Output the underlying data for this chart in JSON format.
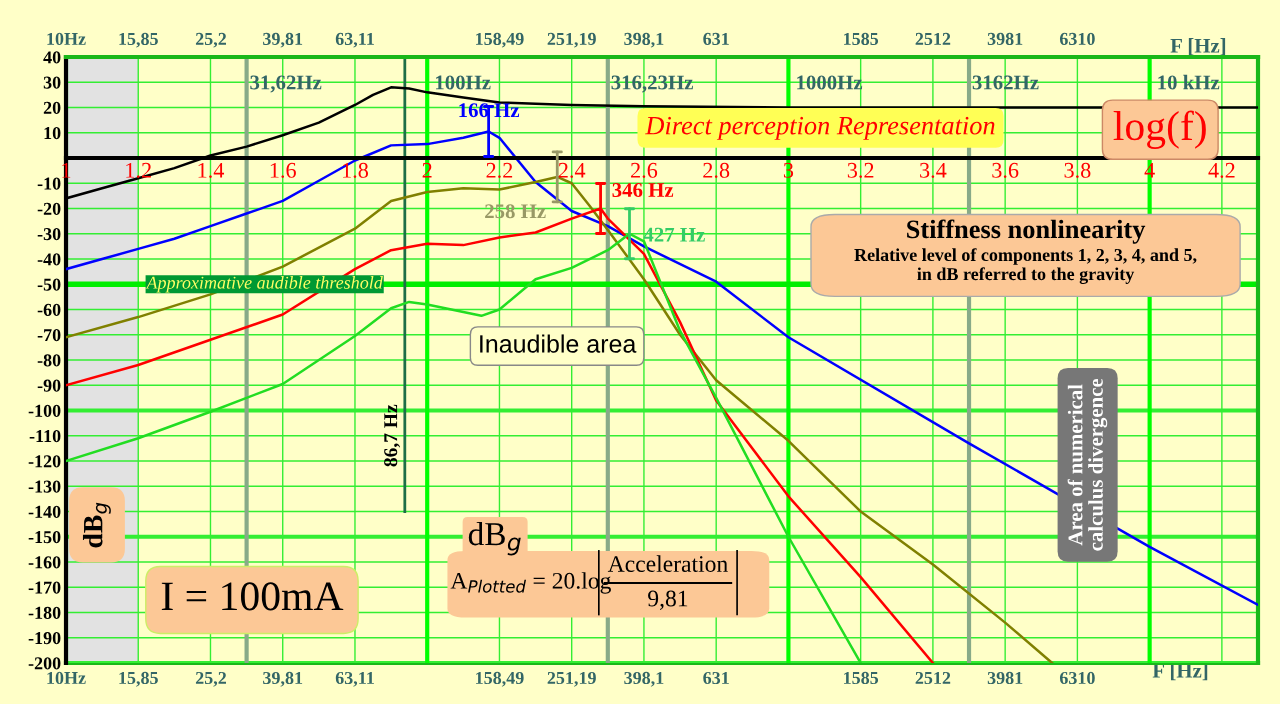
{
  "chart_data": {
    "type": "line",
    "title": "Stiffness nonlinearity",
    "subtitle": "Relative level of components 1, 2, 3, 4, and 5,\nin dB referred to the gravity",
    "x2label": "F [Hz]",
    "ylabel": "dB$_{g}$",
    "xlim": [
      1,
      4.3
    ],
    "ylim": [
      -200,
      40
    ],
    "xticks": [
      1,
      1.2,
      1.4,
      1.6,
      1.8,
      2,
      2.2,
      2.4,
      2.6,
      2.8,
      3,
      3.2,
      3.4,
      3.6,
      3.8,
      4,
      4.2
    ],
    "x2lim": [
      10,
      19953
    ],
    "x2ticks": [
      {
        "value": 10,
        "label": "10Hz"
      },
      {
        "value": 15.85,
        "label": "15,85"
      },
      {
        "value": 25.2,
        "label": "25,2"
      },
      {
        "value": 39.81,
        "label": "39,81"
      },
      {
        "value": 63.11,
        "label": "63,11"
      },
      {
        "value": 158.49,
        "label": "158,49"
      },
      {
        "value": 251.19,
        "label": "251,19"
      },
      {
        "value": 398.1,
        "label": "398,1"
      },
      {
        "value": 631,
        "label": "631"
      },
      {
        "value": 1585,
        "label": "1585"
      },
      {
        "value": 2512,
        "label": "2512"
      },
      {
        "value": 3981,
        "label": "3981"
      },
      {
        "value": 6310,
        "label": "6310"
      }
    ],
    "yticks": [
      -200,
      -190,
      -180,
      -170,
      -160,
      -150,
      -140,
      -130,
      -120,
      -110,
      -100,
      -90,
      -80,
      -70,
      -60,
      -50,
      -40,
      -30,
      -20,
      -10,
      {
        "value": 0,
        "label": null
      },
      10,
      20,
      30,
      40
    ],
    "grid": true,
    "log": "x2",
    "series": [
      {
        "color": "#000000",
        "x": [
          1,
          1.1,
          1.2,
          1.3,
          1.4,
          1.5,
          1.6,
          1.7,
          1.8,
          1.85,
          1.9,
          1.95,
          2.0,
          2.1,
          2.2,
          2.3,
          2.4,
          2.6,
          3.0,
          3.5,
          4.3
        ],
        "values": [
          -16,
          -12,
          -8,
          -4,
          1,
          4.5,
          9,
          14,
          21,
          25,
          28,
          27.5,
          26,
          24,
          22,
          21.5,
          21,
          20.5,
          20,
          20,
          20
        ]
      },
      {
        "color": "#0000ff",
        "x": [
          1,
          1.1,
          1.2,
          1.3,
          1.4,
          1.5,
          1.6,
          1.7,
          1.8,
          1.9,
          2.0,
          2.1,
          2.17,
          2.2,
          2.3,
          2.4,
          2.5,
          2.6,
          2.8,
          3.0,
          3.5,
          4.0,
          4.3
        ],
        "values": [
          -44,
          -40,
          -36,
          -32,
          -27,
          -22,
          -17,
          -9,
          -1,
          5,
          5.5,
          8,
          10.5,
          8,
          -9.5,
          -21,
          -27,
          -35,
          -49,
          -71,
          -113,
          -154,
          -177
        ]
      },
      {
        "color": "#808000",
        "x": [
          1,
          1.2,
          1.4,
          1.6,
          1.8,
          1.9,
          2.0,
          2.1,
          2.2,
          2.3,
          2.36,
          2.4,
          2.45,
          2.5,
          2.6,
          2.7,
          2.8,
          3.0,
          3.2,
          3.4,
          3.6,
          3.73
        ],
        "values": [
          -71,
          -63,
          -54,
          -43,
          -28,
          -17,
          -13.5,
          -12,
          -12.5,
          -9.5,
          -7.5,
          -10,
          -19,
          -28.5,
          -48,
          -70,
          -88,
          -112,
          -140,
          -161,
          -184,
          -200
        ]
      },
      {
        "color": "#ff0000",
        "x": [
          1,
          1.2,
          1.4,
          1.6,
          1.8,
          1.9,
          2.0,
          2.1,
          2.2,
          2.3,
          2.4,
          2.48,
          2.5,
          2.6,
          2.7,
          2.8,
          3.0,
          3.2,
          3.4
        ],
        "values": [
          -90,
          -82,
          -72,
          -62,
          -44,
          -36.5,
          -34,
          -34.5,
          -31.5,
          -29.5,
          -24,
          -20,
          -24,
          -38,
          -65,
          -96,
          -134,
          -166,
          -200
        ]
      },
      {
        "color": "#22dd22",
        "x": [
          1,
          1.2,
          1.4,
          1.6,
          1.8,
          1.9,
          1.95,
          2.0,
          2.1,
          2.15,
          2.2,
          2.3,
          2.4,
          2.5,
          2.56,
          2.6,
          2.7,
          2.8,
          3.0,
          3.2
        ],
        "values": [
          -120,
          -111,
          -100.5,
          -89.5,
          -70.5,
          -59.5,
          -57,
          -58,
          -61,
          -62.5,
          -60,
          -48,
          -43.5,
          -36.5,
          -30,
          -33,
          -68.5,
          -95,
          -150,
          -200
        ]
      }
    ],
    "ref_lines": [
      {
        "axis": "y",
        "value": -50,
        "label": "Approximative audible threshold",
        "color": "#00ee00"
      },
      {
        "axis": "x",
        "value": 1.938,
        "label": "86,7 Hz",
        "color": "#1e6e46"
      },
      {
        "axis": "x",
        "value": 1.5,
        "label": "31,62Hz",
        "color": "#88aa88"
      },
      {
        "axis": "x",
        "value": 2.5,
        "label": "316,23Hz",
        "color": "#88aa88"
      },
      {
        "axis": "x",
        "value": 3.5,
        "label": "3162Hz",
        "color": "#88aa88"
      }
    ],
    "bands": [
      {
        "axis": "x",
        "from": 1,
        "to": 1.2,
        "color": "#e2e2e2"
      }
    ],
    "annotations": [
      "Direct perception Representation",
      "log(f)",
      "Inaudible area",
      "Area of numerical\ncalculus divergence",
      "I = 100mA",
      "dB$_{g}$",
      "A$_{Plotted}$ = 20.log",
      "Acceleration",
      "9,81",
      {
        "text": "166 Hz",
        "x": 2.17,
        "y": 10.5
      },
      {
        "text": "258 Hz",
        "x": 2.36,
        "y": -7.5
      },
      {
        "text": "346 Hz",
        "x": 2.48,
        "y": -20
      },
      {
        "text": "427 Hz",
        "x": 2.56,
        "y": -30
      },
      "100Hz",
      "1000Hz",
      "10 kHz"
    ]
  }
}
